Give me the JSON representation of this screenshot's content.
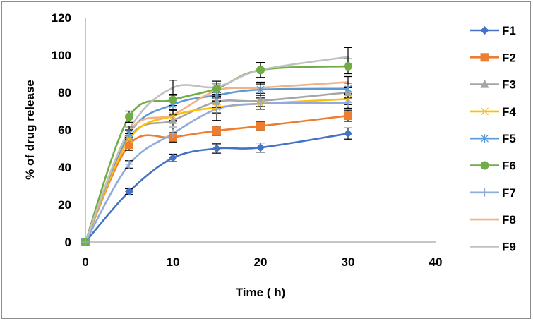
{
  "chart_data": {
    "type": "line",
    "title": "",
    "xlabel": "Time ( h)",
    "ylabel": "% of drug release",
    "xlim": [
      0,
      40
    ],
    "ylim": [
      0,
      120
    ],
    "x_ticks": [
      "0",
      "10",
      "20",
      "30",
      "40"
    ],
    "y_ticks": [
      "0",
      "20",
      "40",
      "60",
      "80",
      "100",
      "120"
    ],
    "x_tick_values": [
      0,
      10,
      20,
      30,
      40
    ],
    "y_tick_values": [
      0,
      20,
      40,
      60,
      80,
      100,
      120
    ],
    "grid": false,
    "legend_position": "right",
    "smooth": true,
    "x": [
      0,
      5,
      10,
      15,
      20,
      30
    ],
    "series": [
      {
        "name": "F1",
        "color": "#4472c4",
        "marker": "diamond",
        "values": [
          0,
          27,
          45,
          50,
          50.5,
          58
        ],
        "errors": [
          0,
          1.5,
          2,
          2.5,
          2.5,
          3
        ]
      },
      {
        "name": "F2",
        "color": "#ed7d31",
        "marker": "square",
        "values": [
          0,
          52,
          56,
          59.5,
          62,
          67.5
        ],
        "errors": [
          0,
          3,
          2.5,
          2.5,
          2.5,
          3
        ]
      },
      {
        "name": "F3",
        "color": "#a5a5a5",
        "marker": "triangle",
        "values": [
          0,
          56,
          65,
          75,
          75.5,
          80
        ],
        "errors": [
          0,
          2,
          3,
          3,
          3,
          3
        ]
      },
      {
        "name": "F4",
        "color": "#ffc000",
        "marker": "x",
        "values": [
          0,
          55,
          67.5,
          72,
          74,
          76.5
        ],
        "errors": [
          0,
          2,
          3,
          3,
          3,
          3
        ]
      },
      {
        "name": "F5",
        "color": "#5b9bd5",
        "marker": "star",
        "values": [
          0,
          58,
          73.5,
          78.5,
          81.5,
          82
        ],
        "errors": [
          0,
          2,
          3,
          3,
          3,
          3
        ]
      },
      {
        "name": "F6",
        "color": "#70ad47",
        "marker": "circle",
        "values": [
          0,
          67,
          76,
          82,
          92,
          94
        ],
        "errors": [
          0,
          3,
          3,
          3,
          4,
          4
        ]
      },
      {
        "name": "F7",
        "color": "#8faadc",
        "marker": "plus",
        "values": [
          0,
          41.5,
          58,
          71,
          74,
          74.5
        ],
        "errors": [
          0,
          2,
          3,
          6,
          3,
          3
        ]
      },
      {
        "name": "F8",
        "color": "#f4b183",
        "marker": "none",
        "values": [
          0,
          59,
          68,
          81,
          82.5,
          85.5
        ],
        "errors": [
          0,
          2,
          3,
          3,
          3,
          3
        ]
      },
      {
        "name": "F9",
        "color": "#c0c0c0",
        "marker": "none",
        "values": [
          0,
          60,
          82.5,
          83,
          92,
          99
        ],
        "errors": [
          0,
          2,
          4,
          3,
          4,
          5
        ]
      }
    ]
  }
}
